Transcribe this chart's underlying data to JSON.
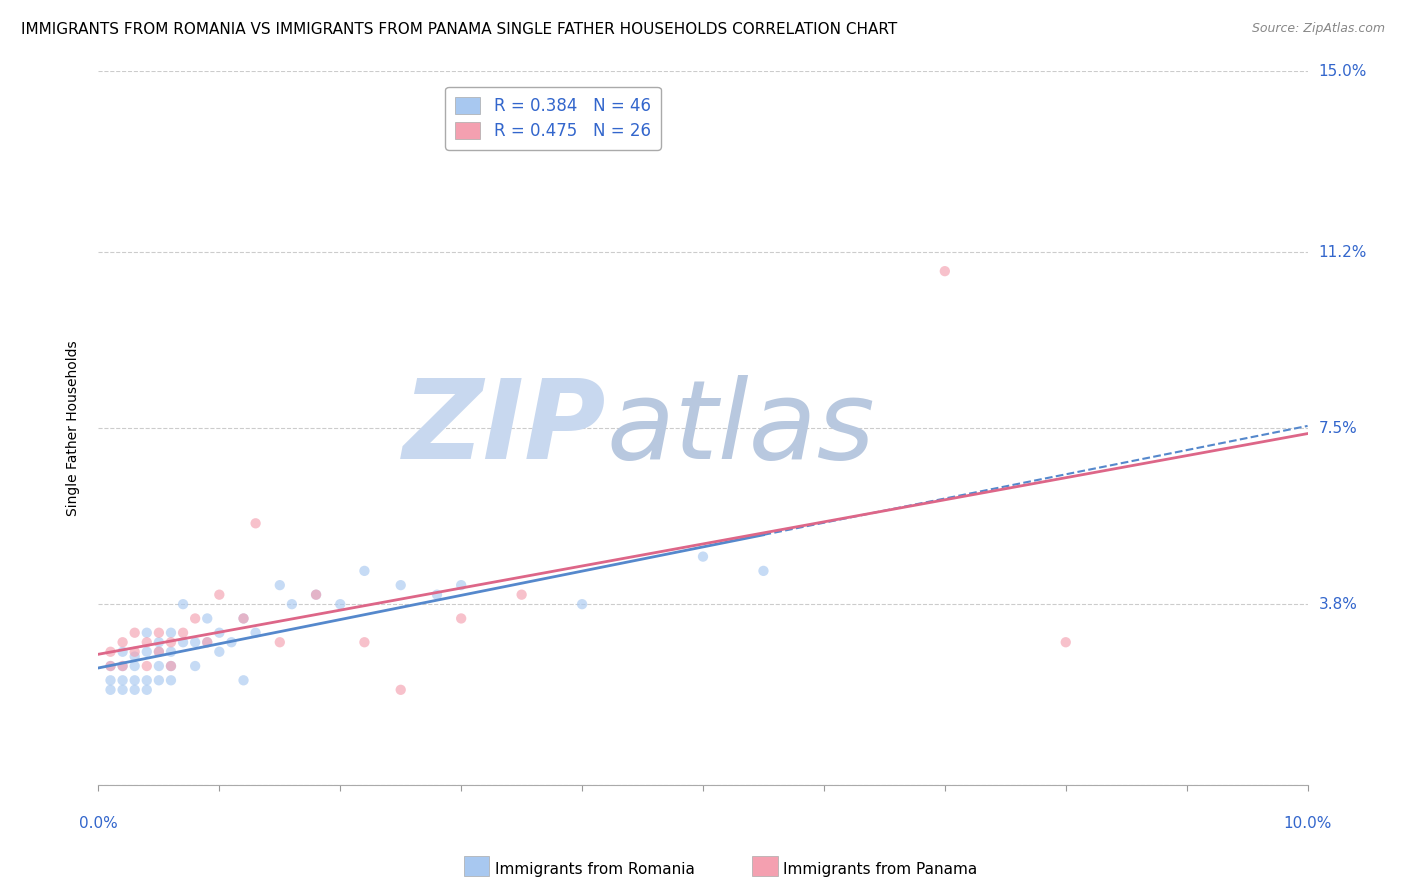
{
  "title": "IMMIGRANTS FROM ROMANIA VS IMMIGRANTS FROM PANAMA SINGLE FATHER HOUSEHOLDS CORRELATION CHART",
  "source": "Source: ZipAtlas.com",
  "ylabel": "Single Father Households",
  "xlim": [
    0.0,
    0.1
  ],
  "ylim": [
    0.0,
    0.15
  ],
  "yticks": [
    0.0,
    0.038,
    0.075,
    0.112,
    0.15
  ],
  "ytick_labels": [
    "",
    "3.8%",
    "7.5%",
    "11.2%",
    "15.0%"
  ],
  "xticks": [
    0.0,
    0.1
  ],
  "xtick_labels": [
    "0.0%",
    "10.0%"
  ],
  "romania_color": "#a8c8f0",
  "panama_color": "#f4a0b0",
  "romania_line_color": "#5588cc",
  "panama_line_color": "#dd6688",
  "legend_R_color": "#3366cc",
  "romania_R": 0.384,
  "panama_R": 0.475,
  "romania_N": 46,
  "panama_N": 26,
  "romania_scatter_x": [
    0.001,
    0.001,
    0.001,
    0.002,
    0.002,
    0.002,
    0.002,
    0.003,
    0.003,
    0.003,
    0.003,
    0.004,
    0.004,
    0.004,
    0.004,
    0.005,
    0.005,
    0.005,
    0.005,
    0.006,
    0.006,
    0.006,
    0.006,
    0.007,
    0.007,
    0.008,
    0.008,
    0.009,
    0.009,
    0.01,
    0.01,
    0.011,
    0.012,
    0.012,
    0.013,
    0.015,
    0.016,
    0.018,
    0.02,
    0.022,
    0.025,
    0.028,
    0.03,
    0.04,
    0.05,
    0.055
  ],
  "romania_scatter_y": [
    0.02,
    0.022,
    0.025,
    0.02,
    0.022,
    0.025,
    0.028,
    0.02,
    0.022,
    0.025,
    0.027,
    0.02,
    0.022,
    0.028,
    0.032,
    0.022,
    0.025,
    0.028,
    0.03,
    0.022,
    0.025,
    0.028,
    0.032,
    0.03,
    0.038,
    0.025,
    0.03,
    0.03,
    0.035,
    0.028,
    0.032,
    0.03,
    0.035,
    0.022,
    0.032,
    0.042,
    0.038,
    0.04,
    0.038,
    0.045,
    0.042,
    0.04,
    0.042,
    0.038,
    0.048,
    0.045
  ],
  "panama_scatter_x": [
    0.001,
    0.001,
    0.002,
    0.002,
    0.003,
    0.003,
    0.004,
    0.004,
    0.005,
    0.005,
    0.006,
    0.006,
    0.007,
    0.008,
    0.009,
    0.01,
    0.012,
    0.013,
    0.015,
    0.018,
    0.022,
    0.025,
    0.03,
    0.035,
    0.07,
    0.08
  ],
  "panama_scatter_y": [
    0.025,
    0.028,
    0.025,
    0.03,
    0.028,
    0.032,
    0.025,
    0.03,
    0.028,
    0.032,
    0.025,
    0.03,
    0.032,
    0.035,
    0.03,
    0.04,
    0.035,
    0.055,
    0.03,
    0.04,
    0.03,
    0.02,
    0.035,
    0.04,
    0.108,
    0.03
  ],
  "watermark_zip_color": "#c8d8ef",
  "watermark_atlas_color": "#b8c8df",
  "grid_color": "#cccccc",
  "grid_style": "--",
  "background_color": "#ffffff",
  "title_fontsize": 11,
  "axis_label_fontsize": 10,
  "tick_label_color": "#3366cc",
  "scatter_alpha": 0.65,
  "scatter_size": 55,
  "romania_line_end_x": 0.055,
  "panama_line_intercept": 0.005,
  "panama_line_slope": 0.072
}
